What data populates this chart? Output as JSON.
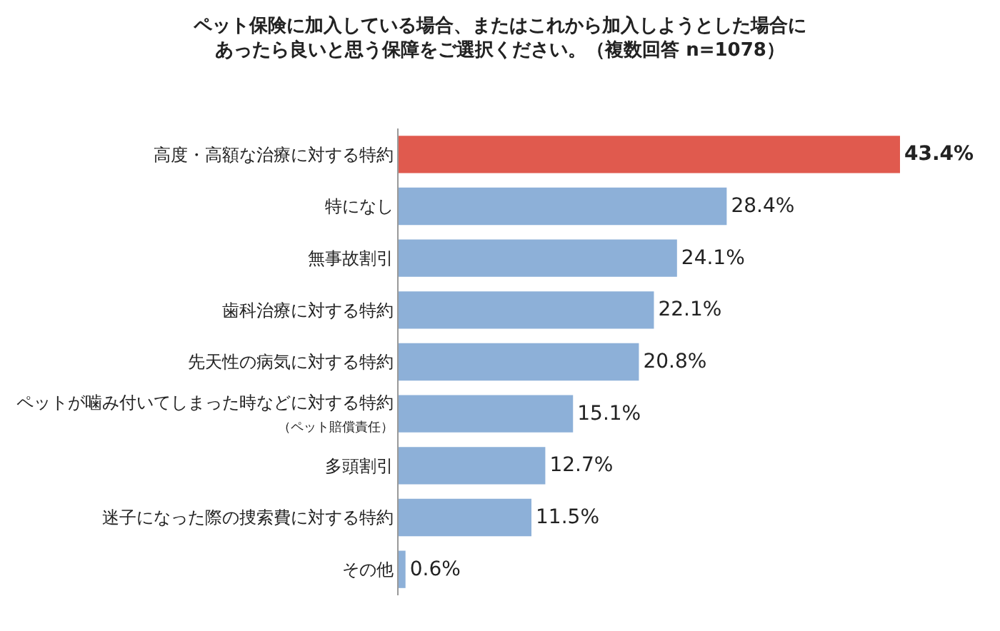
{
  "chart_data": {
    "type": "bar",
    "orientation": "horizontal",
    "title": "ペット保険に加入している場合、またはこれから加入しようとした場合に",
    "subtitle": "あったら良いと思う保障をご選択ください。（複数回答 n=1078）",
    "categories": [
      "高度・高額な治療に対する特約",
      "特になし",
      "無事故割引",
      "歯科治療に対する特約",
      "先天性の病気に対する特約",
      "ペットが噛み付いてしまった時などに対する特約（ペット賠償責任）",
      "多頭割引",
      "迷子になった際の捜索費に対する特約",
      "その他"
    ],
    "values": [
      43.4,
      28.4,
      24.1,
      22.1,
      20.8,
      15.1,
      12.7,
      11.5,
      0.6
    ],
    "colors": [
      "#e05a4e",
      "#8db0d8",
      "#8db0d8",
      "#8db0d8",
      "#8db0d8",
      "#8db0d8",
      "#8db0d8",
      "#8db0d8",
      "#8db0d8"
    ],
    "value_labels": [
      "43.4%",
      "28.4%",
      "24.1%",
      "22.1%",
      "20.8%",
      "15.1%",
      "12.7%",
      "11.5%",
      "0.6%"
    ],
    "legend": false
  }
}
